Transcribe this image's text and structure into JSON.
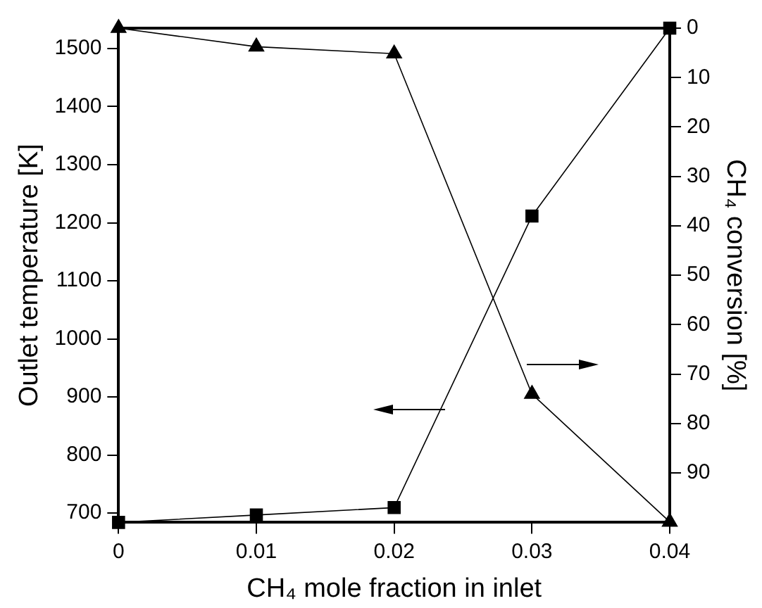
{
  "chart_data": {
    "type": "line",
    "xlabel": "CH₄ mole fraction in inlet",
    "ylabel": "Outlet temperature [K]",
    "y2label": "CH₄ conversion [%]",
    "x": [
      0,
      0.01,
      0.02,
      0.03,
      0.04
    ],
    "series": [
      {
        "color": "#000000",
        "marker": "triangle",
        "values": [
          1535,
          1503,
          1491,
          905,
          685
        ]
      },
      {
        "color": "#000000",
        "marker": "square",
        "axis": "y2",
        "values": [
          100,
          98.5,
          97,
          38,
          0
        ]
      }
    ],
    "xlim": [
      0,
      0.04
    ],
    "xticks": [
      0,
      0.01,
      0.02,
      0.03,
      0.04
    ],
    "ylim": [
      684,
      1535
    ],
    "yticks": [
      700,
      800,
      900,
      1000,
      1100,
      1200,
      1300,
      1400,
      1500
    ],
    "y2lim": [
      100,
      0
    ],
    "y2ticks": [
      0,
      10,
      20,
      30,
      40,
      50,
      60,
      70,
      80,
      90
    ],
    "grid": false,
    "legend": false,
    "line_style": "solid"
  }
}
